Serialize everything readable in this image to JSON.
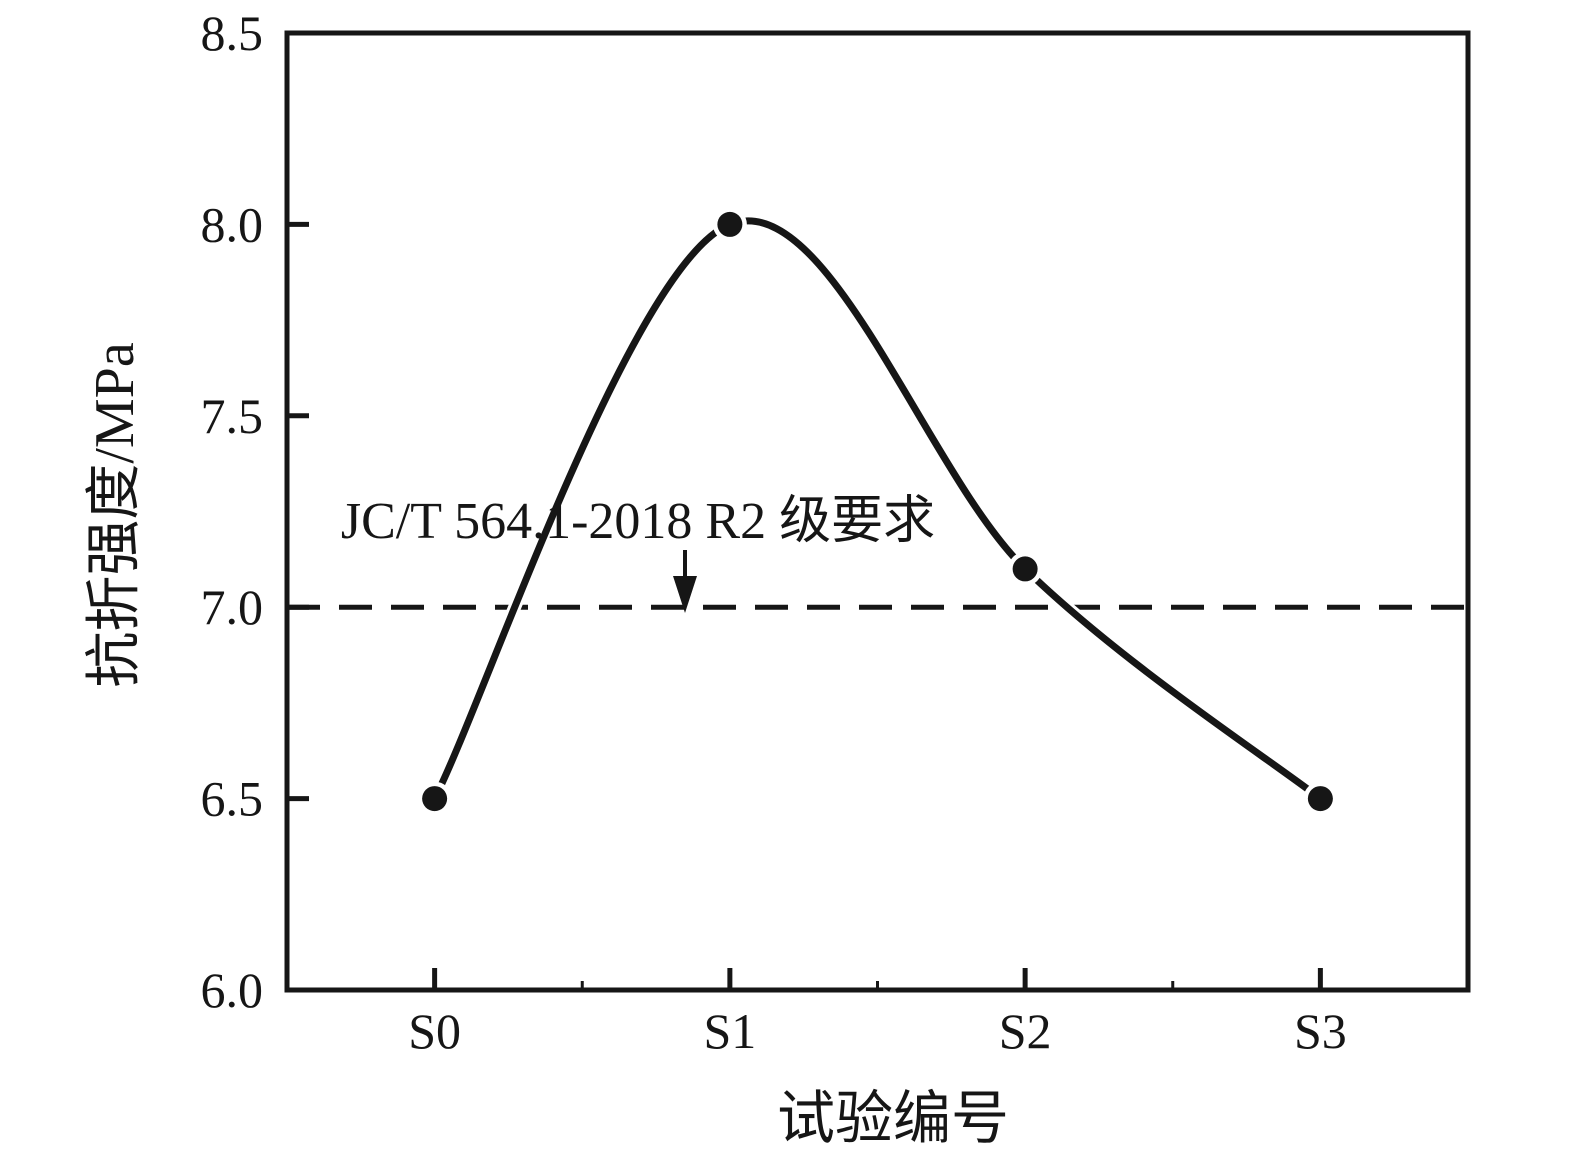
{
  "figure": {
    "background_color": "#ffffff",
    "ink_color": "#161616"
  },
  "chart_data": {
    "type": "line",
    "categories": [
      "S0",
      "S1",
      "S2",
      "S3"
    ],
    "values": [
      6.5,
      8.0,
      7.1,
      6.5
    ],
    "series": [
      {
        "name": "抗折强度",
        "values": [
          6.5,
          8.0,
          7.1,
          6.5
        ]
      }
    ],
    "title": "",
    "xlabel": "试验编号",
    "ylabel": "抗折强度/MPa",
    "ylim": [
      6.0,
      8.5
    ],
    "yticks": [
      6.0,
      6.5,
      7.0,
      7.5,
      8.0,
      8.5
    ],
    "ytick_labels": [
      "6.0",
      "6.5",
      "7.0",
      "7.5",
      "8.0",
      "8.5"
    ],
    "grid": false,
    "legend": null,
    "line_style": "smooth-spline",
    "marker": "filled-circle",
    "line_color": "#161616",
    "marker_color": "#161616",
    "reference_line": {
      "value": 7.0,
      "style": "dashed",
      "color": "#161616",
      "label": "JC/T 564.1-2018 R2 级要求",
      "arrow": "down-arrow-to-line"
    }
  }
}
